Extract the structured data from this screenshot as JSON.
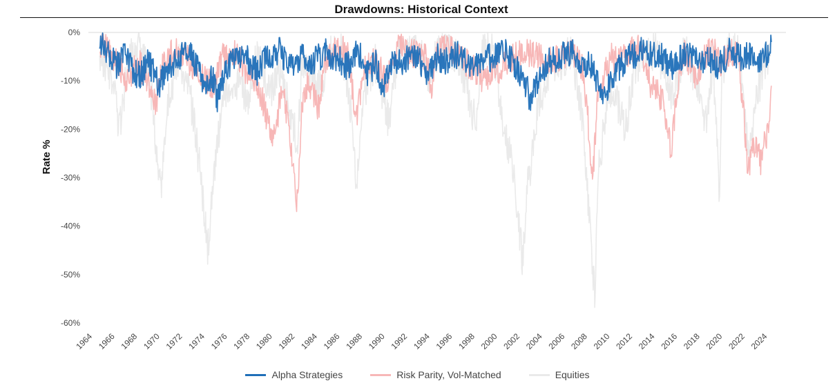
{
  "chart_data": {
    "type": "area",
    "title": "Drawdowns: Historical Context",
    "ylabel": "Rate %",
    "xlabel": "",
    "ylim": [
      -60,
      0
    ],
    "xlim": [
      1964,
      2026
    ],
    "yticks": [
      "0%",
      "-10%",
      "-20%",
      "-30%",
      "-40%",
      "-50%",
      "-60%"
    ],
    "xticks": [
      "1964",
      "1966",
      "1968",
      "1970",
      "1972",
      "1974",
      "1976",
      "1978",
      "1980",
      "1982",
      "1984",
      "1986",
      "1988",
      "1990",
      "1992",
      "1994",
      "1996",
      "1998",
      "2000",
      "2002",
      "2004",
      "2006",
      "2008",
      "2010",
      "2012",
      "2014",
      "2016",
      "2018",
      "2020",
      "2022",
      "2024"
    ],
    "grid": false,
    "legend_position": "bottom",
    "series": [
      {
        "name": "Equities",
        "color": "#eaeaea",
        "x": [
          1965,
          1966,
          1966.8,
          1967.5,
          1968.5,
          1969.5,
          1970.4,
          1971,
          1972,
          1973,
          1974.0,
          1974.6,
          1975.2,
          1976,
          1977,
          1978.2,
          1979,
          1980.2,
          1981,
          1982.6,
          1983,
          1984.5,
          1985.5,
          1986.5,
          1987.5,
          1987.8,
          1988.5,
          1989.5,
          1990.7,
          1991.5,
          1993,
          1994.3,
          1995,
          1996,
          1997,
          1998.4,
          1999,
          2000,
          2000.7,
          2001.7,
          2002.6,
          2003.0,
          2004,
          2005,
          2006,
          2007,
          2008.0,
          2008.5,
          2009.0,
          2009.3,
          2010,
          2010.6,
          2011.7,
          2012.5,
          2013.5,
          2014.5,
          2015.7,
          2016.1,
          2017,
          2018.0,
          2018.9,
          2019.5,
          2020.1,
          2020.3,
          2021,
          2021.8,
          2022.3,
          2022.8,
          2023.5,
          2024.2,
          2024.6
        ],
        "y": [
          -4,
          -9,
          -20,
          -6,
          -3,
          -10,
          -33,
          -15,
          -5,
          -12,
          -30,
          -45,
          -28,
          -12,
          -10,
          -13,
          -5,
          -12,
          -8,
          -23,
          -5,
          -12,
          -4,
          -3,
          -18,
          -33,
          -12,
          -6,
          -19,
          -5,
          -2,
          -9,
          -4,
          -3,
          -6,
          -19,
          -3,
          -4,
          -17,
          -27,
          -47,
          -33,
          -15,
          -8,
          -6,
          -4,
          -20,
          -38,
          -55,
          -30,
          -16,
          -12,
          -20,
          -8,
          -4,
          -4,
          -12,
          -13,
          -3,
          -10,
          -19,
          -6,
          -34,
          -10,
          -3,
          -3,
          -18,
          -25,
          -12,
          -6,
          -5
        ]
      },
      {
        "name": "Risk Parity, Vol-Matched",
        "color": "#f7b7b7",
        "x": [
          1965,
          1966,
          1967.5,
          1968.5,
          1969,
          1970,
          1970.5,
          1971,
          1972,
          1973,
          1974,
          1975,
          1976,
          1977,
          1978,
          1979,
          1979.8,
          1980.5,
          1981.3,
          1982.0,
          1982.6,
          1983,
          1983.5,
          1984.5,
          1985,
          1986,
          1987,
          1987.8,
          1988.5,
          1989.5,
          1990.5,
          1991.5,
          1992.5,
          1994,
          1994.5,
          1995,
          1996,
          1997,
          1998,
          1999,
          2000,
          2001,
          2002,
          2003,
          2004,
          2005,
          2006,
          2007,
          2008,
          2008.4,
          2008.8,
          2009.2,
          2010,
          2010.5,
          2011,
          2012,
          2013,
          2013.5,
          2014,
          2015,
          2015.8,
          2016.5,
          2017,
          2018,
          2018.8,
          2019.5,
          2020.2,
          2021,
          2021.8,
          2022.2,
          2022.6,
          2023.2,
          2023.8,
          2024.5,
          2024.7
        ],
        "y": [
          -2,
          -4,
          -10,
          -6,
          -9,
          -15,
          -8,
          -5,
          -3,
          -6,
          -9,
          -11,
          -5,
          -4,
          -8,
          -10,
          -17,
          -22,
          -10,
          -25,
          -36,
          -15,
          -10,
          -16,
          -6,
          -3,
          -4,
          -18,
          -8,
          -5,
          -10,
          -3,
          -4,
          -5,
          -12,
          -4,
          -3,
          -5,
          -7,
          -10,
          -9,
          -6,
          -5,
          -4,
          -5,
          -6,
          -5,
          -4,
          -8,
          -18,
          -32,
          -15,
          -7,
          -5,
          -6,
          -4,
          -3,
          -6,
          -11,
          -14,
          -24,
          -8,
          -4,
          -10,
          -5,
          -3,
          -7,
          -4,
          -5,
          -16,
          -28,
          -23,
          -27,
          -18,
          -11
        ]
      },
      {
        "name": "Alpha Strategies",
        "color": "#1f6fb8",
        "x": [
          1965,
          1965.8,
          1966.5,
          1967.2,
          1968,
          1968.6,
          1969.4,
          1970.2,
          1971,
          1972,
          1973,
          1973.8,
          1974.4,
          1975,
          1975.5,
          1976.2,
          1977,
          1978,
          1979,
          1980,
          1981,
          1982,
          1983,
          1984,
          1985,
          1986,
          1987,
          1988,
          1988.8,
          1989.5,
          1990.2,
          1991,
          1992,
          1993,
          1994,
          1995,
          1996,
          1997,
          1998,
          1999,
          2000,
          2001,
          2002,
          2002.8,
          2003.3,
          2004,
          2005,
          2006,
          2007,
          2008,
          2008.8,
          2009.4,
          2010,
          2010.6,
          2011.2,
          2012,
          2013,
          2014,
          2015,
          2016,
          2017,
          2018,
          2019,
          2020,
          2021,
          2022,
          2023,
          2023.8,
          2024.3,
          2024.7
        ],
        "y": [
          -2,
          -5,
          -7,
          -5,
          -8,
          -9,
          -6,
          -11,
          -8,
          -5,
          -4,
          -8,
          -12,
          -9,
          -14,
          -8,
          -6,
          -5,
          -8,
          -5,
          -4,
          -7,
          -5,
          -6,
          -4,
          -5,
          -7,
          -4,
          -9,
          -6,
          -12,
          -7,
          -6,
          -4,
          -9,
          -5,
          -6,
          -4,
          -8,
          -6,
          -5,
          -4,
          -7,
          -10,
          -14,
          -10,
          -6,
          -5,
          -4,
          -6,
          -7,
          -11,
          -13,
          -9,
          -7,
          -5,
          -4,
          -4,
          -5,
          -7,
          -4,
          -6,
          -5,
          -7,
          -4,
          -5,
          -5,
          -6,
          -4,
          -2
        ]
      }
    ]
  }
}
